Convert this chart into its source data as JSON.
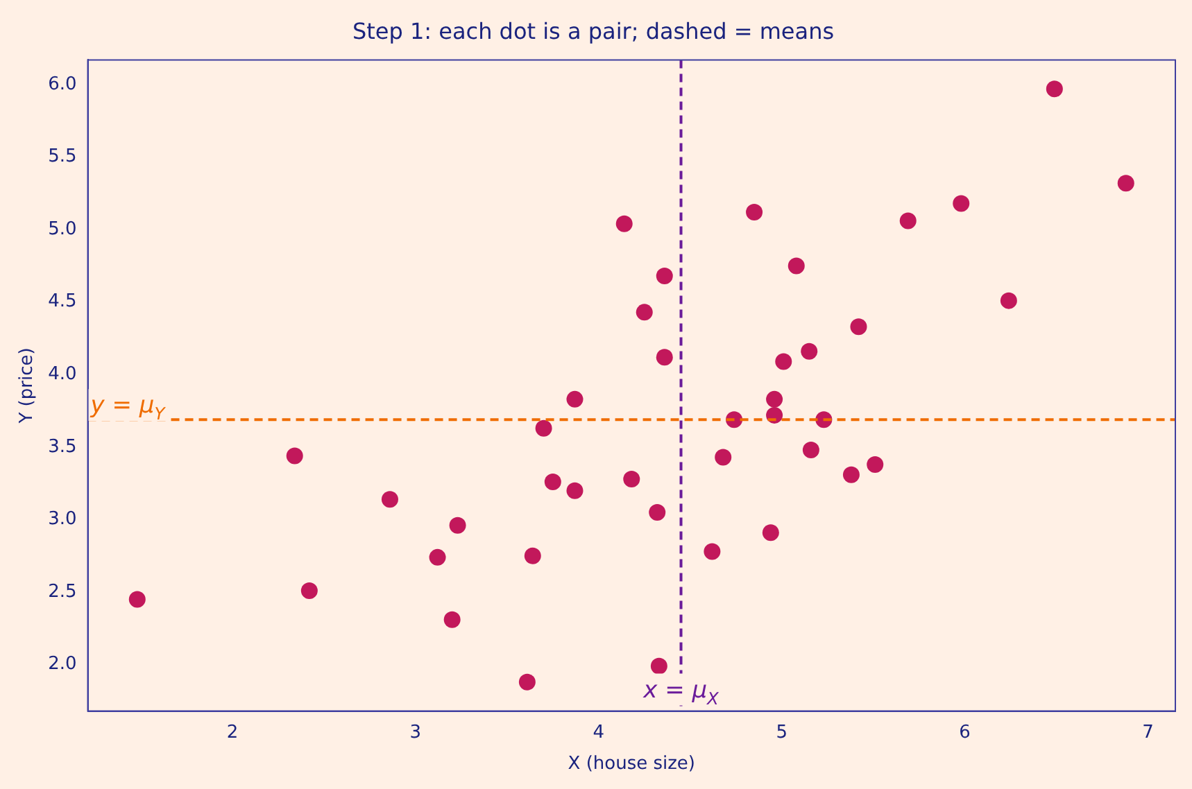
{
  "chart_data": {
    "type": "scatter",
    "title": "Step 1: each dot is a pair; dashed = means",
    "xlabel": "X (house size)",
    "ylabel": "Y (price)",
    "x": [
      1.48,
      2.34,
      2.42,
      2.86,
      3.12,
      3.2,
      3.23,
      3.61,
      3.64,
      3.7,
      3.75,
      3.87,
      3.87,
      4.14,
      4.18,
      4.25,
      4.32,
      4.33,
      4.36,
      4.36,
      4.62,
      4.68,
      4.74,
      4.85,
      4.94,
      4.96,
      4.96,
      5.01,
      5.08,
      5.15,
      5.16,
      5.23,
      5.38,
      5.42,
      5.51,
      5.69,
      5.98,
      6.24,
      6.49,
      6.88
    ],
    "series": [
      {
        "color": "#c2185b",
        "values": [
          2.45,
          3.44,
          2.51,
          3.14,
          2.74,
          2.31,
          2.96,
          1.88,
          2.75,
          3.63,
          3.26,
          3.83,
          3.2,
          5.04,
          3.28,
          4.43,
          3.05,
          1.99,
          4.68,
          4.12,
          2.78,
          3.43,
          3.69,
          5.12,
          2.91,
          3.83,
          3.72,
          4.09,
          4.75,
          4.16,
          3.48,
          3.69,
          3.31,
          4.33,
          3.38,
          5.06,
          5.18,
          4.51,
          5.97,
          5.32
        ]
      }
    ],
    "marker": "circle",
    "legend": false,
    "xlim": [
      1.21,
      7.15
    ],
    "ylim": [
      1.68,
      6.17
    ],
    "xticks": [
      2,
      3,
      4,
      5,
      6,
      7
    ],
    "yticks": [
      {
        "value": 2,
        "label": "2.0"
      },
      {
        "value": 2.5,
        "label": "2.5"
      },
      {
        "value": 3,
        "label": "3.0"
      },
      {
        "value": 3.5,
        "label": "3.5"
      },
      {
        "value": 4,
        "label": "4.0"
      },
      {
        "value": 4.5,
        "label": "4.5"
      },
      {
        "value": 5,
        "label": "5.0"
      },
      {
        "value": 5.5,
        "label": "5.5"
      },
      {
        "value": 6,
        "label": "6.0"
      }
    ],
    "ref_lines": [
      {
        "axis": "x",
        "value": 4.45,
        "label": "x = μ$_{X}$",
        "color": "#6a1b9a",
        "line_style": "dashed"
      },
      {
        "axis": "y",
        "value": 3.69,
        "label": "y = μ$_{Y}$",
        "color": "#ef6c00",
        "line_style": "dashed"
      }
    ]
  }
}
